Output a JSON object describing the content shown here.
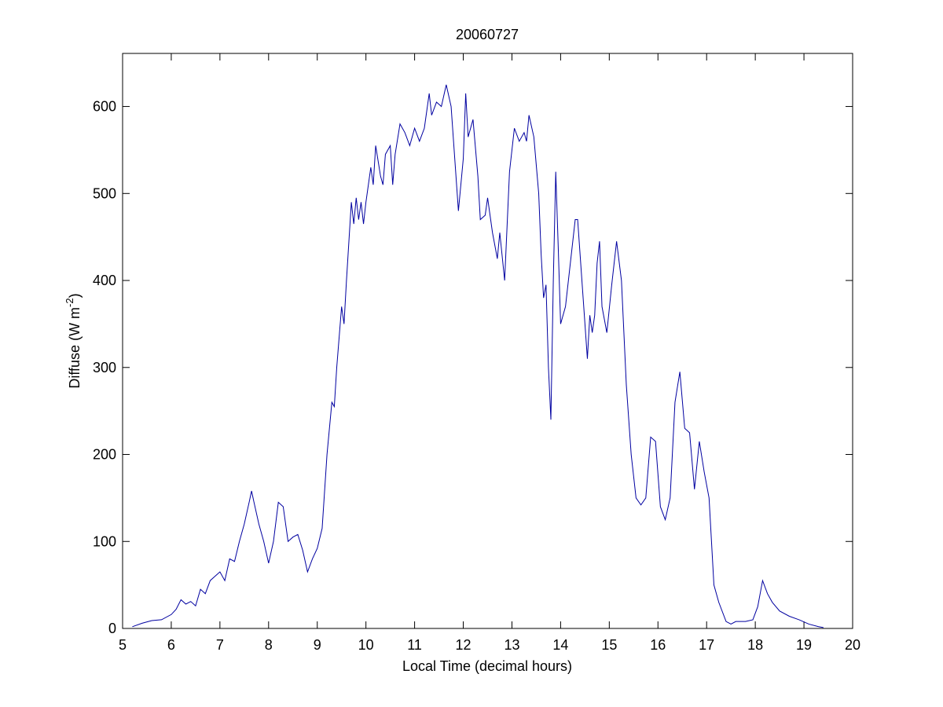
{
  "chart_data": {
    "type": "line",
    "title": "20060727",
    "xlabel": "Local Time (decimal hours)",
    "ylabel": [
      "Diffuse (W m",
      "-2",
      ")"
    ],
    "xlim": [
      5,
      20
    ],
    "ylim": [
      0,
      661
    ],
    "xticks": [
      5,
      6,
      7,
      8,
      9,
      10,
      11,
      12,
      13,
      14,
      15,
      16,
      17,
      18,
      19,
      20
    ],
    "yticks": [
      0,
      100,
      200,
      300,
      400,
      500,
      600
    ],
    "grid": false,
    "series": [
      {
        "color": "#0000a0",
        "x": [
          5.2,
          5.4,
          5.6,
          5.8,
          6.0,
          6.1,
          6.2,
          6.3,
          6.4,
          6.5,
          6.6,
          6.7,
          6.8,
          6.9,
          7.0,
          7.1,
          7.2,
          7.3,
          7.4,
          7.5,
          7.6,
          7.65,
          7.7,
          7.8,
          7.9,
          8.0,
          8.1,
          8.2,
          8.3,
          8.4,
          8.5,
          8.6,
          8.7,
          8.8,
          8.9,
          9.0,
          9.1,
          9.2,
          9.3,
          9.35,
          9.4,
          9.5,
          9.55,
          9.6,
          9.7,
          9.75,
          9.8,
          9.85,
          9.9,
          9.95,
          10.0,
          10.1,
          10.15,
          10.2,
          10.3,
          10.35,
          10.4,
          10.5,
          10.55,
          10.6,
          10.7,
          10.8,
          10.9,
          11.0,
          11.1,
          11.2,
          11.3,
          11.35,
          11.45,
          11.55,
          11.65,
          11.75,
          11.8,
          11.9,
          12.0,
          12.05,
          12.1,
          12.2,
          12.3,
          12.35,
          12.45,
          12.5,
          12.6,
          12.7,
          12.75,
          12.85,
          12.95,
          13.05,
          13.15,
          13.25,
          13.3,
          13.35,
          13.45,
          13.55,
          13.6,
          13.65,
          13.7,
          13.75,
          13.8,
          13.85,
          13.9,
          13.95,
          14.0,
          14.1,
          14.2,
          14.3,
          14.35,
          14.45,
          14.55,
          14.6,
          14.65,
          14.7,
          14.75,
          14.8,
          14.85,
          14.95,
          15.05,
          15.15,
          15.25,
          15.35,
          15.45,
          15.55,
          15.65,
          15.75,
          15.85,
          15.95,
          16.05,
          16.15,
          16.25,
          16.35,
          16.45,
          16.55,
          16.65,
          16.75,
          16.85,
          16.95,
          17.05,
          17.15,
          17.25,
          17.4,
          17.5,
          17.6,
          17.8,
          17.95,
          18.05,
          18.15,
          18.25,
          18.35,
          18.5,
          18.7,
          18.9,
          19.1,
          19.3,
          19.4
        ],
        "values": [
          2,
          6,
          9,
          10,
          16,
          22,
          33,
          28,
          31,
          26,
          45,
          40,
          55,
          60,
          65,
          55,
          80,
          77,
          100,
          120,
          145,
          158,
          145,
          120,
          100,
          75,
          100,
          145,
          140,
          100,
          105,
          108,
          90,
          65,
          80,
          92,
          115,
          200,
          260,
          255,
          300,
          370,
          350,
          400,
          490,
          465,
          495,
          470,
          490,
          465,
          490,
          530,
          510,
          555,
          520,
          510,
          545,
          555,
          510,
          545,
          580,
          570,
          555,
          575,
          560,
          575,
          615,
          590,
          605,
          600,
          625,
          600,
          560,
          480,
          540,
          615,
          565,
          585,
          520,
          470,
          475,
          495,
          455,
          425,
          455,
          400,
          525,
          575,
          560,
          570,
          560,
          590,
          565,
          500,
          430,
          380,
          395,
          300,
          240,
          400,
          525,
          440,
          350,
          370,
          420,
          470,
          470,
          390,
          310,
          360,
          340,
          360,
          420,
          445,
          370,
          340,
          395,
          445,
          400,
          280,
          200,
          150,
          142,
          150,
          220,
          215,
          140,
          125,
          150,
          260,
          295,
          230,
          225,
          160,
          215,
          180,
          150,
          50,
          30,
          8,
          5,
          8,
          8,
          10,
          25,
          55,
          40,
          30,
          20,
          14,
          10,
          5,
          2,
          1
        ]
      }
    ]
  }
}
